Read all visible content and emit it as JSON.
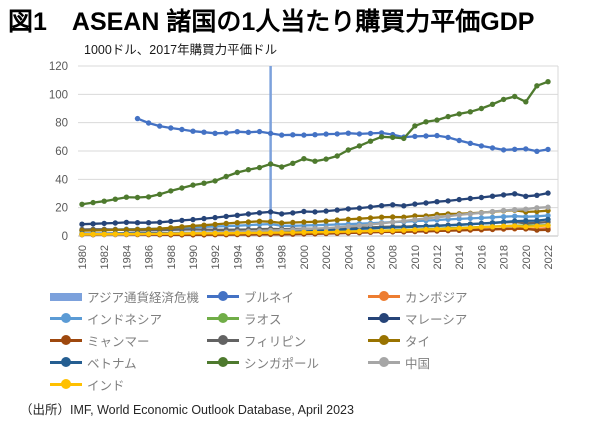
{
  "figure": {
    "title": "図1　ASEAN 諸国の1人当たり購買力平価GDP",
    "unit_note": "1000ドル、2017年購買力平価ドル",
    "source": "（出所）IMF, World Economic Outlook Database, April 2023"
  },
  "chart_data": {
    "type": "line",
    "title": "図1　ASEAN 諸国の1人当たり購買力平価GDP",
    "ylabel": "1000ドル、2017年購買力平価ドル",
    "xlabel": "",
    "ylim": [
      0,
      120
    ],
    "yticks": [
      0,
      20,
      40,
      60,
      80,
      100,
      120
    ],
    "x": [
      1980,
      1981,
      1982,
      1983,
      1984,
      1985,
      1986,
      1987,
      1988,
      1989,
      1990,
      1991,
      1992,
      1993,
      1994,
      1995,
      1996,
      1997,
      1998,
      1999,
      2000,
      2001,
      2002,
      2003,
      2004,
      2005,
      2006,
      2007,
      2008,
      2009,
      2010,
      2011,
      2012,
      2013,
      2014,
      2015,
      2016,
      2017,
      2018,
      2019,
      2020,
      2021,
      2022
    ],
    "x_tick_step": 2,
    "grid": "horizontal",
    "legend_position": "bottom",
    "marker": "circle",
    "annotation": {
      "id": "asian-crisis",
      "label": "アジア通貨経済危機",
      "type": "vline",
      "x": 1997,
      "color": "#7CA1DC"
    },
    "series": [
      {
        "id": "brunei",
        "label": "ブルネイ",
        "color": "#4472C4",
        "values": [
          null,
          null,
          null,
          null,
          null,
          82.9,
          79.8,
          77.6,
          76.2,
          75.2,
          74.0,
          73.3,
          72.5,
          72.8,
          73.6,
          73.2,
          73.7,
          72.4,
          71.2,
          71.4,
          71.2,
          71.5,
          71.9,
          72.1,
          72.6,
          72.1,
          72.4,
          72.8,
          71.6,
          69.8,
          70.3,
          70.6,
          70.9,
          69.6,
          67.4,
          65.4,
          63.6,
          62.2,
          60.8,
          61.2,
          61.5,
          59.8,
          61.1
        ]
      },
      {
        "id": "cambodia",
        "label": "カンボジア",
        "color": "#ED7D31",
        "values": [
          null,
          null,
          null,
          null,
          null,
          null,
          1.0,
          1.1,
          1.1,
          1.1,
          1.2,
          1.3,
          1.3,
          1.4,
          1.4,
          1.5,
          1.5,
          1.6,
          1.6,
          1.8,
          1.9,
          2.0,
          2.1,
          2.3,
          2.4,
          2.6,
          2.8,
          3.0,
          3.1,
          3.1,
          3.2,
          3.4,
          3.6,
          3.8,
          4.0,
          4.2,
          4.4,
          4.6,
          4.9,
          5.1,
          5.0,
          5.1,
          5.4
        ]
      },
      {
        "id": "indonesia",
        "label": "インドネシア",
        "color": "#5B9BD5",
        "values": [
          4.2,
          4.4,
          4.4,
          4.6,
          4.8,
          4.8,
          5.0,
          5.2,
          5.4,
          5.7,
          6.1,
          6.4,
          6.7,
          7.0,
          7.3,
          7.7,
          8.1,
          8.4,
          7.2,
          7.2,
          7.4,
          7.6,
          7.8,
          8.1,
          8.4,
          8.7,
          9.0,
          9.4,
          9.8,
          10.1,
          10.5,
          10.9,
          11.3,
          11.7,
          12.1,
          12.4,
          12.8,
          13.2,
          13.6,
          14.0,
          13.6,
          13.9,
          14.5
        ]
      },
      {
        "id": "laos",
        "label": "ラオス",
        "color": "#70AD47",
        "values": [
          1.4,
          1.5,
          1.5,
          1.5,
          1.6,
          1.7,
          1.8,
          1.7,
          1.7,
          1.8,
          1.9,
          1.9,
          2.0,
          2.1,
          2.2,
          2.3,
          2.4,
          2.5,
          2.5,
          2.6,
          2.7,
          2.8,
          2.9,
          3.0,
          3.2,
          3.4,
          3.6,
          3.8,
          4.0,
          4.3,
          4.5,
          4.8,
          5.1,
          5.4,
          5.7,
          6.0,
          6.4,
          6.7,
          7.0,
          7.3,
          7.3,
          7.4,
          7.6
        ]
      },
      {
        "id": "malaysia",
        "label": "マレーシア",
        "color": "#264478",
        "values": [
          8.3,
          8.6,
          8.9,
          9.2,
          9.6,
          9.4,
          9.4,
          9.7,
          10.3,
          11.0,
          11.6,
          12.3,
          13.0,
          13.8,
          14.6,
          15.5,
          16.4,
          17.0,
          15.6,
          16.3,
          17.3,
          17.0,
          17.6,
          18.3,
          19.1,
          19.7,
          20.5,
          21.4,
          22.0,
          21.3,
          22.5,
          23.3,
          24.2,
          24.8,
          25.7,
          26.5,
          27.2,
          28.1,
          29.0,
          29.8,
          28.0,
          28.7,
          30.3
        ]
      },
      {
        "id": "myanmar",
        "label": "ミャンマー",
        "color": "#9E480E",
        "values": [
          0.9,
          0.9,
          1.0,
          1.0,
          1.0,
          1.0,
          1.0,
          0.9,
          0.8,
          0.8,
          0.8,
          0.8,
          0.9,
          0.9,
          1.0,
          1.0,
          1.1,
          1.1,
          1.2,
          1.3,
          1.4,
          1.5,
          1.7,
          1.9,
          2.1,
          2.3,
          2.6,
          2.8,
          2.9,
          3.0,
          3.2,
          3.3,
          3.5,
          3.8,
          4.0,
          4.3,
          4.5,
          4.7,
          5.0,
          5.3,
          5.1,
          4.2,
          4.4
        ]
      },
      {
        "id": "philippines",
        "label": "フィリピン",
        "color": "#636363",
        "values": [
          4.6,
          4.7,
          4.7,
          4.6,
          4.2,
          3.9,
          4.0,
          4.1,
          4.3,
          4.5,
          4.6,
          4.5,
          4.4,
          4.4,
          4.5,
          4.6,
          4.8,
          5.0,
          4.9,
          5.0,
          5.1,
          5.2,
          5.3,
          5.5,
          5.7,
          5.9,
          6.1,
          6.4,
          6.6,
          6.6,
          6.9,
          7.0,
          7.3,
          7.7,
          8.0,
          8.4,
          8.8,
          9.2,
          9.6,
          9.9,
          8.9,
          9.3,
          9.9
        ]
      },
      {
        "id": "thailand",
        "label": "タイ",
        "color": "#997300",
        "values": [
          3.8,
          3.9,
          4.1,
          4.3,
          4.5,
          4.6,
          4.8,
          5.2,
          5.8,
          6.5,
          7.1,
          7.6,
          8.2,
          8.8,
          9.4,
          9.9,
          10.4,
          10.1,
          9.2,
          9.5,
          9.8,
          10.0,
          10.5,
          11.2,
          11.8,
          12.2,
          12.7,
          13.3,
          13.4,
          13.3,
          14.2,
          14.2,
          15.2,
          15.6,
          15.7,
          16.0,
          16.5,
          17.1,
          17.8,
          18.2,
          17.0,
          17.3,
          17.9
        ]
      },
      {
        "id": "vietnam",
        "label": "ベトナム",
        "color": "#255E91",
        "values": [
          1.6,
          1.6,
          1.7,
          1.8,
          1.9,
          1.9,
          2.0,
          2.0,
          2.1,
          2.2,
          2.2,
          2.3,
          2.5,
          2.6,
          2.8,
          3.0,
          3.2,
          3.4,
          3.5,
          3.6,
          3.8,
          4.0,
          4.2,
          4.5,
          4.8,
          5.1,
          5.4,
          5.7,
          6.0,
          6.3,
          6.6,
          6.9,
          7.2,
          7.5,
          7.9,
          8.3,
          8.8,
          9.3,
          9.9,
          10.5,
          10.7,
          10.9,
          11.7
        ]
      },
      {
        "id": "singapore",
        "label": "シンガポール",
        "color": "#4E7A2E",
        "values": [
          22.4,
          23.6,
          24.6,
          26.0,
          27.4,
          27.2,
          27.6,
          29.4,
          31.8,
          33.9,
          35.9,
          37.3,
          38.9,
          42.0,
          44.8,
          46.8,
          48.3,
          50.8,
          48.7,
          51.3,
          54.6,
          52.8,
          54.3,
          56.5,
          60.7,
          63.6,
          66.9,
          70.0,
          69.6,
          68.9,
          77.7,
          80.6,
          81.8,
          84.3,
          86.2,
          87.7,
          90.0,
          93.0,
          96.4,
          98.5,
          94.7,
          106.0,
          108.9
        ]
      },
      {
        "id": "china",
        "label": "中国",
        "color": "#A6A6A6",
        "values": [
          1.0,
          1.1,
          1.1,
          1.2,
          1.3,
          1.4,
          1.5,
          1.7,
          1.8,
          1.9,
          2.0,
          2.2,
          2.4,
          2.7,
          3.0,
          3.3,
          3.6,
          3.9,
          4.1,
          4.4,
          4.8,
          5.2,
          5.6,
          6.1,
          6.7,
          7.3,
          8.1,
          9.0,
          9.8,
          10.6,
          11.5,
          12.4,
          13.2,
          14.0,
          14.9,
          15.7,
          16.4,
          17.2,
          18.0,
          18.6,
          18.9,
          19.9,
          20.3
        ]
      },
      {
        "id": "india",
        "label": "インド",
        "color": "#FFC000",
        "values": [
          1.2,
          1.3,
          1.3,
          1.4,
          1.4,
          1.4,
          1.5,
          1.5,
          1.6,
          1.7,
          1.8,
          1.8,
          1.8,
          1.9,
          2.0,
          2.1,
          2.2,
          2.3,
          2.4,
          2.5,
          2.6,
          2.7,
          2.7,
          2.9,
          3.1,
          3.3,
          3.5,
          3.7,
          3.8,
          4.1,
          4.4,
          4.6,
          4.8,
          5.1,
          5.4,
          5.8,
          6.2,
          6.5,
          6.9,
          7.1,
          6.5,
          7.0,
          7.4
        ]
      }
    ],
    "axis_colors": {
      "tick_label": "#595959",
      "gridline": "#D9D9D9",
      "axis_line": "#BFBFBF"
    }
  }
}
